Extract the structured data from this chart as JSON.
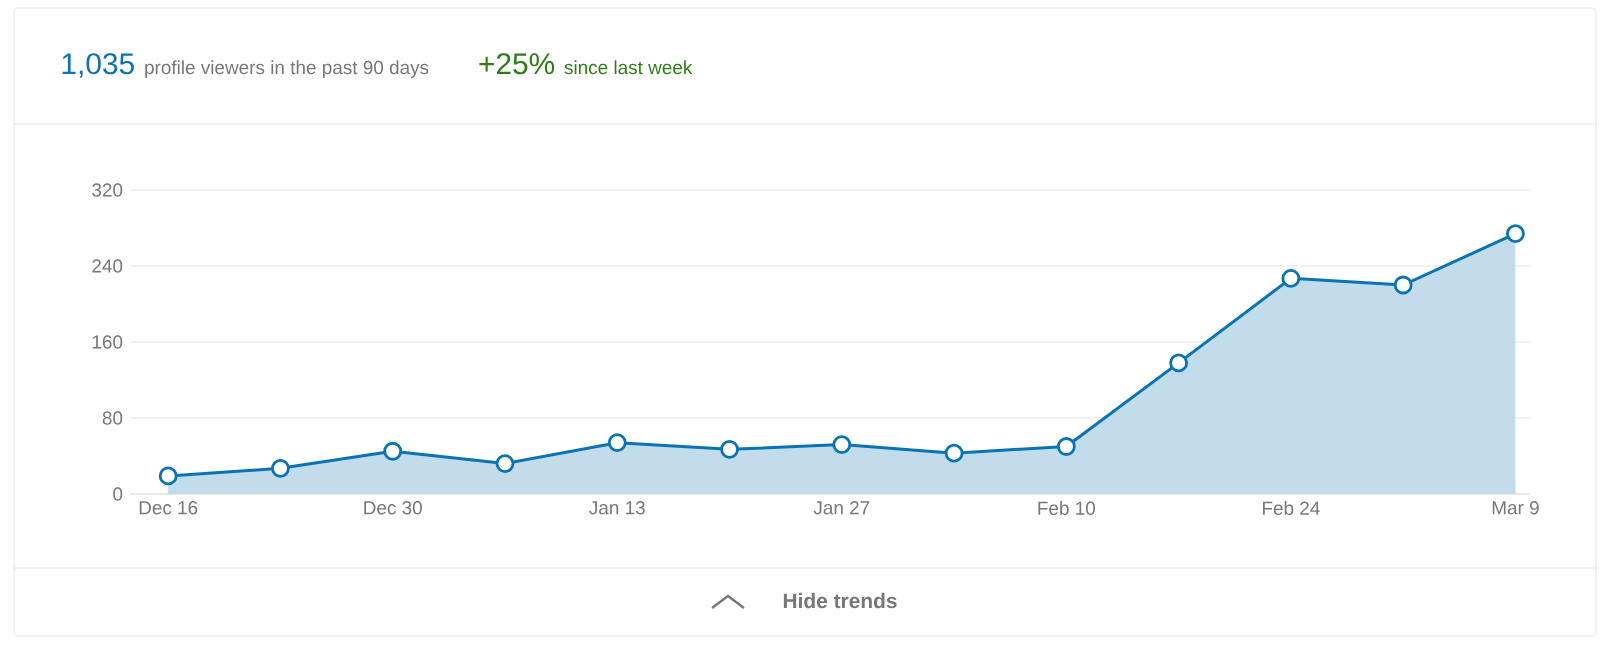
{
  "chart_data": {
    "type": "area",
    "annotations": [
      "1,035",
      "profile viewers in the past 90 days",
      "+25%",
      "since last week",
      "Hide trends"
    ],
    "categories": [
      "Dec 16",
      null,
      "Dec 30",
      null,
      "Jan 13",
      null,
      "Jan 27",
      null,
      "Feb 10",
      null,
      "Feb 24",
      null,
      "Mar 9"
    ],
    "values": [
      19,
      27,
      45,
      32,
      54,
      47,
      52,
      43,
      50,
      138,
      227,
      220,
      274
    ],
    "color": "#0a73b5",
    "ylim": [
      0,
      320
    ],
    "yticks": [
      0,
      80,
      160,
      240,
      320
    ],
    "grid": "y",
    "marker": "circle",
    "line_style": "solid"
  }
}
